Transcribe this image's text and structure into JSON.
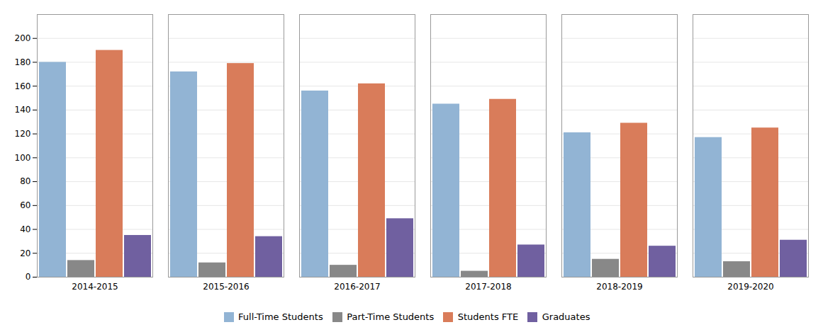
{
  "chart_data": {
    "type": "bar",
    "categories": [
      "2014-2015",
      "2015-2016",
      "2016-2017",
      "2017-2018",
      "2018-2019",
      "2019-2020"
    ],
    "series": [
      {
        "name": "Full-Time Students",
        "color": "#92b4d4",
        "values": [
          180,
          172,
          156,
          145,
          121,
          117
        ]
      },
      {
        "name": "Part-Time Students",
        "color": "#888888",
        "values": [
          14,
          12,
          10,
          5,
          15,
          13
        ]
      },
      {
        "name": "Students FTE",
        "color": "#d97c5a",
        "values": [
          190,
          179,
          162,
          149,
          129,
          125
        ]
      },
      {
        "name": "Graduates",
        "color": "#7060a0",
        "values": [
          35,
          34,
          49,
          27,
          26,
          31
        ]
      }
    ],
    "ylim": [
      0,
      220
    ],
    "yticks": [
      0,
      20,
      40,
      60,
      80,
      100,
      120,
      140,
      160,
      180,
      200
    ],
    "grid": true,
    "legend": "bottom"
  }
}
